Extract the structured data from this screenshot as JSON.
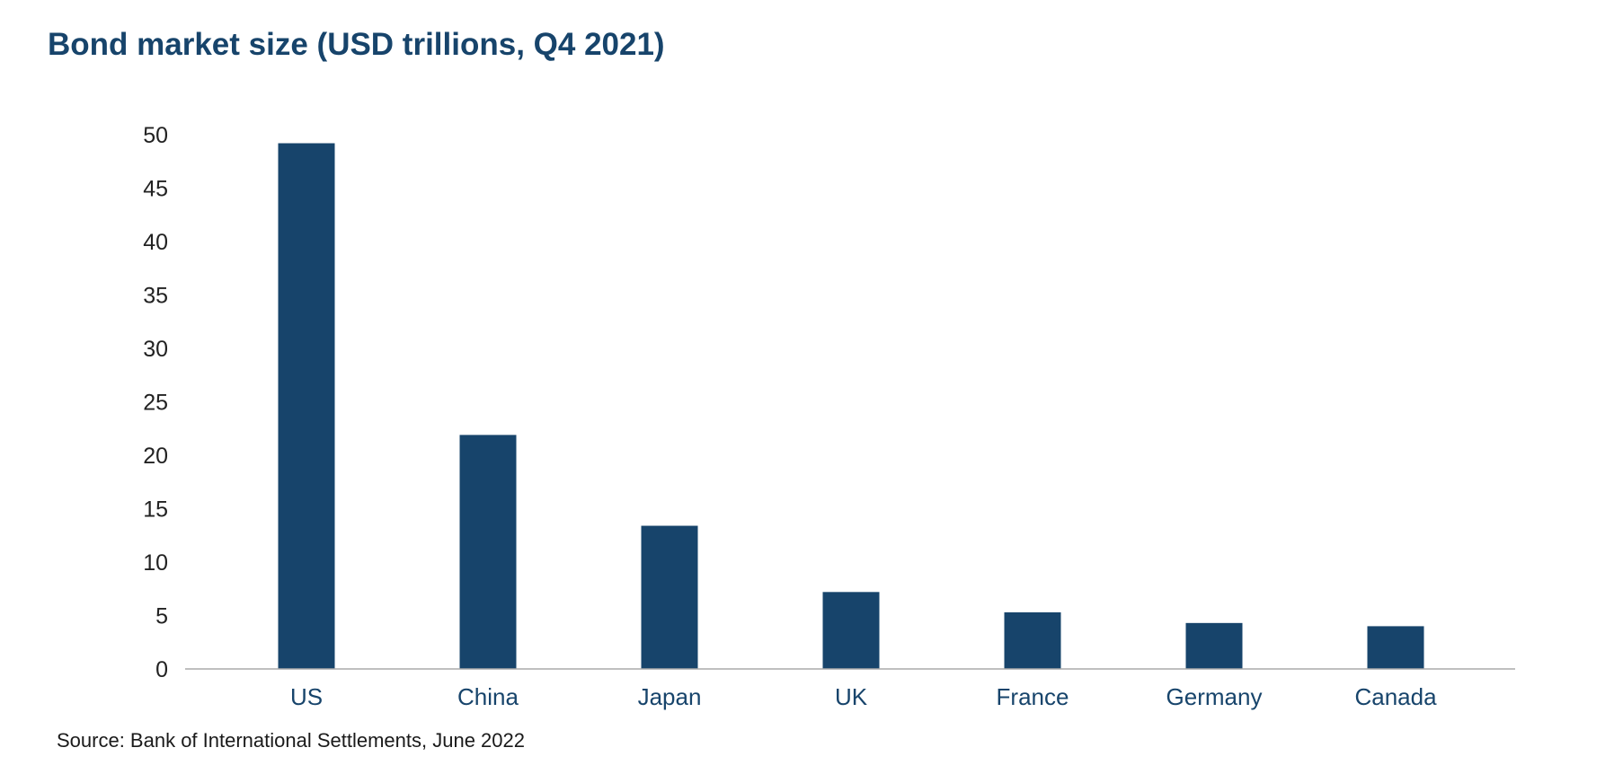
{
  "chart_data": {
    "type": "bar",
    "title": "Bond market size (USD trillions, Q4 2021)",
    "xlabel": "",
    "ylabel": "",
    "categories": [
      "US",
      "China",
      "Japan",
      "UK",
      "France",
      "Germany",
      "Canada"
    ],
    "values": [
      49.2,
      21.9,
      13.4,
      7.2,
      5.3,
      4.3,
      4.0
    ],
    "ylim": [
      0,
      50
    ],
    "yticks": [
      "0",
      "5",
      "10",
      "15",
      "20",
      "25",
      "30",
      "35",
      "40",
      "45",
      "50"
    ],
    "grid": false,
    "legend": "none",
    "bar_color": "#17446b",
    "axis_color": "#aaaaaa"
  },
  "source": "Source: Bank of International Settlements, June 2022"
}
